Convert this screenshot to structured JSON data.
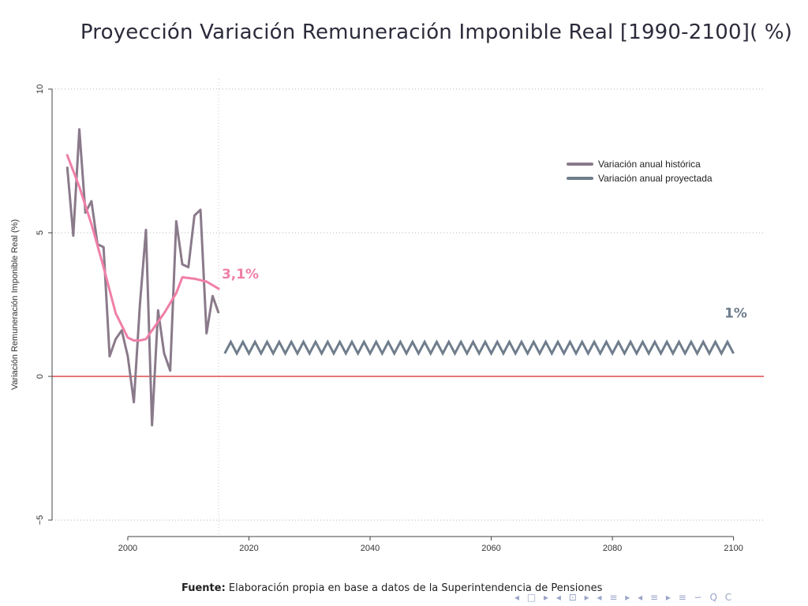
{
  "page": {
    "title": "Proyección Variación Remuneración Imponible Real [1990-2100]( %)",
    "source_label": "Fuente:",
    "source_text": " Elaboración propia en base a datos de la Superintendencia de Pensiones",
    "nav_icons": [
      "◂",
      "□",
      "▸",
      "◂",
      "⊡",
      "▸",
      "◂",
      "≡",
      "▸",
      "◂",
      "≡",
      "▸",
      "≡",
      "∽",
      "Q",
      "C"
    ]
  },
  "chart_data": {
    "type": "line",
    "title": "Proyección Variación Remuneración Imponible Real [1990-2100]( %)",
    "ylabel": "Variación Remuneración Imponible Real (%)",
    "xlabel": "",
    "xlim": [
      1987.5,
      2105
    ],
    "ylim": [
      -5.3,
      10.3
    ],
    "xticks": [
      2000,
      2020,
      2040,
      2060,
      2080,
      2100
    ],
    "yticks": [
      -5,
      0,
      5,
      10
    ],
    "grid": "horizontal dotted",
    "reference_line": {
      "y": 0,
      "color": "#d62728"
    },
    "vertical_line": {
      "x": 2015,
      "style": "dotted"
    },
    "legend_position": "top-right",
    "series": [
      {
        "name": "Variación anual histórica",
        "color": "#8a7a8a",
        "x": [
          1990,
          1991,
          1992,
          1993,
          1994,
          1995,
          1996,
          1997,
          1998,
          1999,
          2000,
          2001,
          2002,
          2003,
          2004,
          2005,
          2006,
          2007,
          2008,
          2009,
          2010,
          2011,
          2012,
          2013,
          2014,
          2015
        ],
        "y": [
          7.3,
          4.9,
          8.6,
          5.7,
          6.1,
          4.6,
          4.5,
          0.7,
          1.3,
          1.6,
          0.7,
          -0.9,
          2.5,
          5.1,
          -1.7,
          2.3,
          0.8,
          0.2,
          5.4,
          3.9,
          3.8,
          5.6,
          5.8,
          1.5,
          2.8,
          2.2
        ]
      },
      {
        "name": "Variación anual proyectada",
        "color": "#6f7d8c",
        "x_range": [
          2016,
          2100
        ],
        "value": 1.0,
        "zigzag_amplitude": 0.2
      },
      {
        "color": "#f07fa8",
        "x": [
          1990,
          1992,
          1994,
          1996,
          1998,
          2000,
          2001,
          2002,
          2003,
          2004,
          2005,
          2006,
          2008,
          2009,
          2011,
          2013,
          2015
        ],
        "y": [
          7.7,
          6.6,
          5.3,
          3.8,
          2.2,
          1.35,
          1.25,
          1.25,
          1.3,
          1.6,
          1.9,
          2.2,
          2.9,
          3.45,
          3.4,
          3.3,
          3.05
        ]
      }
    ],
    "annotations": [
      {
        "text": "3,1%",
        "x": 2015.5,
        "y": 3.4,
        "color": "#f07fa8"
      },
      {
        "text": "1%",
        "x": 2098.5,
        "y": 2.05,
        "color": "#6f7d8c"
      }
    ]
  }
}
